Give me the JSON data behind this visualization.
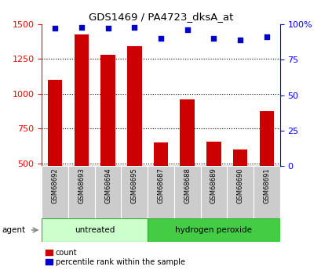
{
  "title": "GDS1469 / PA4723_dksA_at",
  "samples": [
    "GSM68692",
    "GSM68693",
    "GSM68694",
    "GSM68695",
    "GSM68687",
    "GSM68688",
    "GSM68689",
    "GSM68690",
    "GSM68691"
  ],
  "counts": [
    1100,
    1425,
    1280,
    1340,
    650,
    960,
    655,
    600,
    875
  ],
  "percentiles": [
    97,
    98,
    97,
    98,
    90,
    96,
    90,
    89,
    91
  ],
  "bar_color": "#cc0000",
  "dot_color": "#0000cc",
  "ylim_left": [
    480,
    1500
  ],
  "ylim_right": [
    0,
    100
  ],
  "yticks_left": [
    500,
    750,
    1000,
    1250,
    1500
  ],
  "yticks_right": [
    0,
    25,
    50,
    75,
    100
  ],
  "background_color": "#ffffff",
  "sample_box_color": "#cccccc",
  "untreated_color_light": "#ccffcc",
  "untreated_color_dark": "#44cc44",
  "h2o2_color": "#44cc44",
  "legend_count_label": "count",
  "legend_pct_label": "percentile rank within the sample",
  "agent_label": "agent",
  "group_label_untreated": "untreated",
  "group_label_h2o2": "hydrogen peroxide",
  "n_untreated": 4,
  "n_h2o2": 5
}
